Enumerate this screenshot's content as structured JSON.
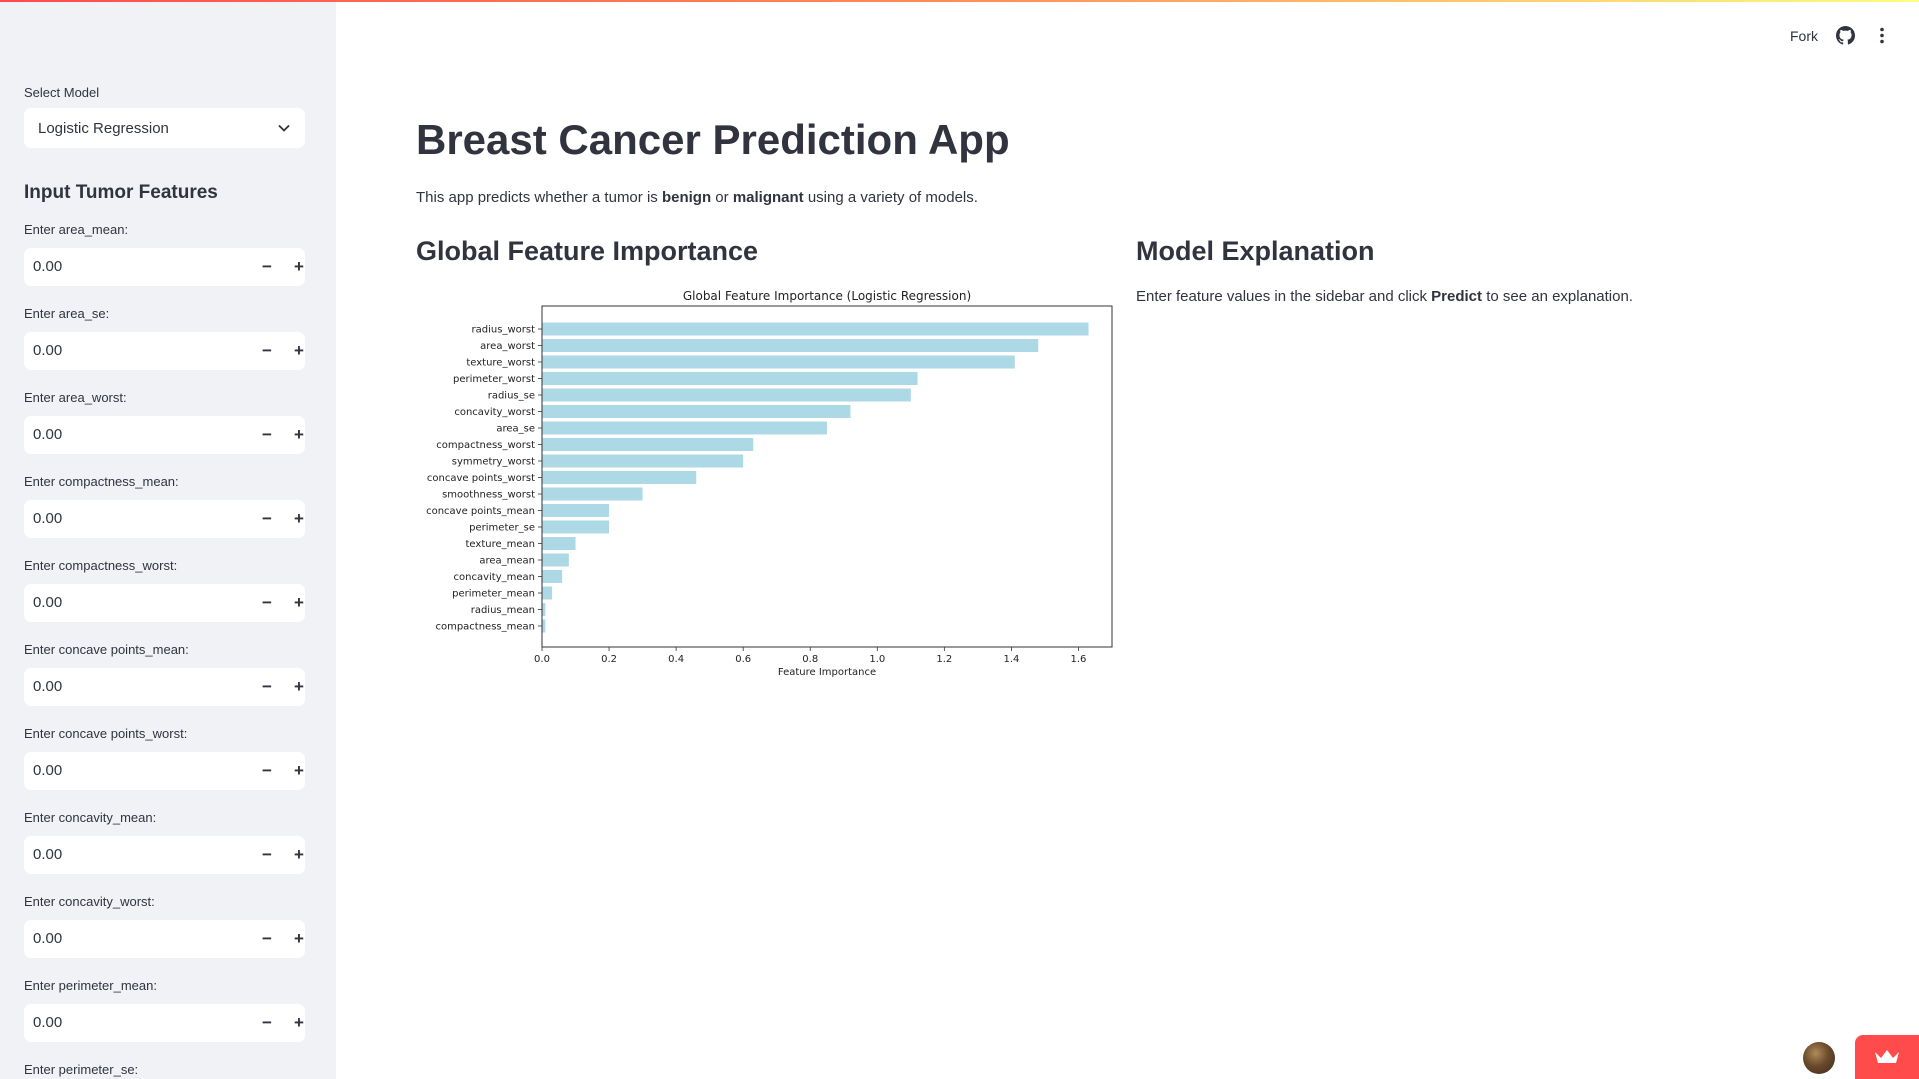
{
  "header": {
    "fork_label": "Fork",
    "icons": [
      "github-icon",
      "more-vert-icon"
    ]
  },
  "sidebar": {
    "model_label": "Select Model",
    "model_value": "Logistic Regression",
    "features_heading": "Input Tumor Features",
    "inputs": [
      {
        "label": "Enter area_mean:",
        "value": "0.00"
      },
      {
        "label": "Enter area_se:",
        "value": "0.00"
      },
      {
        "label": "Enter area_worst:",
        "value": "0.00"
      },
      {
        "label": "Enter compactness_mean:",
        "value": "0.00"
      },
      {
        "label": "Enter compactness_worst:",
        "value": "0.00"
      },
      {
        "label": "Enter concave points_mean:",
        "value": "0.00"
      },
      {
        "label": "Enter concave points_worst:",
        "value": "0.00"
      },
      {
        "label": "Enter concavity_mean:",
        "value": "0.00"
      },
      {
        "label": "Enter concavity_worst:",
        "value": "0.00"
      },
      {
        "label": "Enter perimeter_mean:",
        "value": "0.00"
      },
      {
        "label": "Enter perimeter_se:",
        "value": ""
      }
    ],
    "minus_symbol": "−",
    "plus_symbol": "+"
  },
  "main": {
    "title": "Breast Cancer Prediction App",
    "intro": {
      "part1": "This app predicts whether a tumor is ",
      "benign": "benign",
      "part2": " or ",
      "malignant": "malignant",
      "part3": " using a variety of models."
    },
    "importance_heading": "Global Feature Importance",
    "explanation_heading": "Model Explanation",
    "explanation": {
      "part1": "Enter feature values in the sidebar and click ",
      "predict": "Predict",
      "part2": " to see an explanation."
    }
  },
  "chart_data": {
    "type": "bar",
    "orientation": "horizontal",
    "title": "Global Feature Importance (Logistic Regression)",
    "xlabel": "Feature Importance",
    "ylabel": "",
    "xlim": [
      0,
      1.7
    ],
    "xticks": [
      "0.0",
      "0.2",
      "0.4",
      "0.6",
      "0.8",
      "1.0",
      "1.2",
      "1.4",
      "1.6"
    ],
    "bar_color": "#add8e6",
    "categories": [
      "radius_worst",
      "area_worst",
      "texture_worst",
      "perimeter_worst",
      "radius_se",
      "concavity_worst",
      "area_se",
      "compactness_worst",
      "symmetry_worst",
      "concave points_worst",
      "smoothness_worst",
      "concave points_mean",
      "perimeter_se",
      "texture_mean",
      "area_mean",
      "concavity_mean",
      "perimeter_mean",
      "radius_mean",
      "compactness_mean"
    ],
    "values": [
      1.63,
      1.48,
      1.41,
      1.12,
      1.1,
      0.92,
      0.85,
      0.63,
      0.6,
      0.46,
      0.3,
      0.2,
      0.2,
      0.1,
      0.08,
      0.06,
      0.03,
      0.01,
      0.01
    ]
  }
}
